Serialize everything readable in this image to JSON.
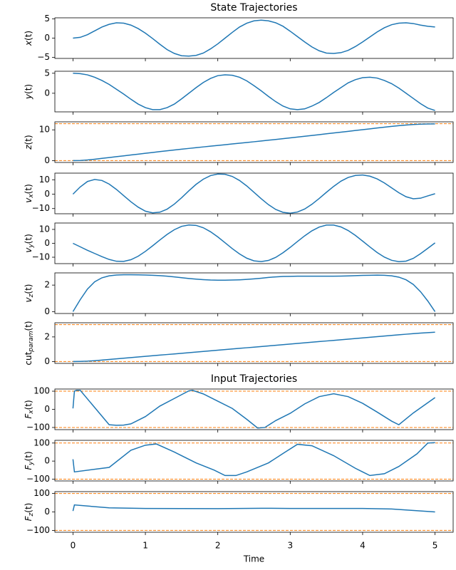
{
  "chart_data": [
    {
      "type": "line",
      "title": "State Trajectories",
      "ylabel": [
        "x",
        "(t)"
      ],
      "xtick_labels": false,
      "x": [
        0,
        0.1,
        0.2,
        0.3,
        0.4,
        0.5,
        0.6,
        0.7,
        0.8,
        0.9,
        1.0,
        1.1,
        1.2,
        1.3,
        1.4,
        1.5,
        1.6,
        1.7,
        1.8,
        1.9,
        2.0,
        2.1,
        2.2,
        2.3,
        2.4,
        2.5,
        2.6,
        2.7,
        2.8,
        2.9,
        3.0,
        3.1,
        3.2,
        3.3,
        3.4,
        3.5,
        3.6,
        3.7,
        3.8,
        3.9,
        4.0,
        4.1,
        4.2,
        4.3,
        4.4,
        4.5,
        4.6,
        4.7,
        4.8,
        4.9,
        5.0
      ],
      "series": [
        {
          "color": "#1f77b4",
          "values": [
            0,
            0.2,
            0.9,
            1.9,
            2.9,
            3.6,
            4.0,
            3.9,
            3.4,
            2.5,
            1.3,
            -0.1,
            -1.6,
            -3.0,
            -4.0,
            -4.6,
            -4.7,
            -4.5,
            -3.9,
            -2.8,
            -1.5,
            0,
            1.5,
            2.9,
            3.9,
            4.5,
            4.7,
            4.5,
            4.0,
            3.1,
            1.8,
            0.4,
            -1.0,
            -2.3,
            -3.3,
            -3.9,
            -4.0,
            -3.8,
            -3.2,
            -2.2,
            -1.0,
            0.3,
            1.6,
            2.7,
            3.5,
            3.9,
            4.0,
            3.8,
            3.4,
            3.1,
            2.9
          ]
        }
      ],
      "xlim": [
        -0.25,
        5.25
      ],
      "xticks": [
        0,
        1,
        2,
        3,
        4,
        5
      ],
      "ylim": [
        -5.3,
        5.3
      ],
      "yticks": [
        {
          "value": -5,
          "label": "−5"
        },
        0,
        5
      ]
    },
    {
      "type": "line",
      "ylabel": [
        "y",
        "(t)"
      ],
      "xtick_labels": false,
      "x": [
        0,
        0.1,
        0.2,
        0.3,
        0.4,
        0.5,
        0.6,
        0.7,
        0.8,
        0.9,
        1.0,
        1.1,
        1.2,
        1.3,
        1.4,
        1.5,
        1.6,
        1.7,
        1.8,
        1.9,
        2.0,
        2.1,
        2.2,
        2.3,
        2.4,
        2.5,
        2.6,
        2.7,
        2.8,
        2.9,
        3.0,
        3.1,
        3.2,
        3.3,
        3.4,
        3.5,
        3.6,
        3.7,
        3.8,
        3.9,
        4.0,
        4.1,
        4.2,
        4.3,
        4.4,
        4.5,
        4.6,
        4.7,
        4.8,
        4.9,
        5.0
      ],
      "series": [
        {
          "color": "#1f77b4",
          "values": [
            5.0,
            4.9,
            4.6,
            4.0,
            3.2,
            2.2,
            1.0,
            -0.2,
            -1.5,
            -2.7,
            -3.6,
            -4.1,
            -4.1,
            -3.6,
            -2.7,
            -1.4,
            0,
            1.4,
            2.7,
            3.7,
            4.4,
            4.6,
            4.5,
            4.0,
            3.1,
            1.9,
            0.6,
            -0.8,
            -2.1,
            -3.2,
            -3.9,
            -4.1,
            -3.9,
            -3.2,
            -2.3,
            -1.1,
            0.2,
            1.4,
            2.6,
            3.4,
            3.9,
            4.0,
            3.8,
            3.2,
            2.4,
            1.3,
            0,
            -1.3,
            -2.6,
            -3.7,
            -4.3
          ]
        }
      ],
      "xlim": [
        -0.25,
        5.25
      ],
      "xticks": [
        0,
        1,
        2,
        3,
        4,
        5
      ],
      "ylim": [
        -4.65,
        5.5
      ],
      "yticks": [
        0,
        5
      ]
    },
    {
      "type": "line",
      "ylabel": [
        "z",
        "(t)"
      ],
      "xtick_labels": false,
      "x": [
        0,
        0.1,
        0.2,
        0.3,
        0.4,
        0.5,
        0.6,
        0.7,
        0.8,
        0.9,
        1.0,
        1.1,
        1.2,
        1.3,
        1.4,
        1.5,
        1.6,
        1.7,
        1.8,
        1.9,
        2.0,
        2.1,
        2.2,
        2.3,
        2.4,
        2.5,
        2.6,
        2.7,
        2.8,
        2.9,
        3.0,
        3.1,
        3.2,
        3.3,
        3.4,
        3.5,
        3.6,
        3.7,
        3.8,
        3.9,
        4.0,
        4.1,
        4.2,
        4.3,
        4.4,
        4.5,
        4.6,
        4.7,
        4.8,
        4.9,
        5.0
      ],
      "series": [
        {
          "color": "#1f77b4",
          "values": [
            0,
            0.05,
            0.2,
            0.45,
            0.72,
            0.99,
            1.27,
            1.55,
            1.83,
            2.1,
            2.38,
            2.65,
            2.92,
            3.18,
            3.45,
            3.71,
            3.96,
            4.21,
            4.45,
            4.69,
            4.93,
            5.17,
            5.41,
            5.65,
            5.89,
            6.13,
            6.38,
            6.63,
            6.88,
            7.14,
            7.4,
            7.66,
            7.92,
            8.18,
            8.44,
            8.71,
            8.97,
            9.24,
            9.51,
            9.78,
            10.05,
            10.32,
            10.6,
            10.87,
            11.12,
            11.35,
            11.55,
            11.72,
            11.84,
            11.91,
            11.93
          ]
        }
      ],
      "hlines": {
        "values": [
          0,
          12
        ],
        "color": "#ff7f0e",
        "style": "dashed"
      },
      "xlim": [
        -0.25,
        5.25
      ],
      "xticks": [
        0,
        1,
        2,
        3,
        4,
        5
      ],
      "ylim": [
        -0.6,
        12.6
      ],
      "yticks": [
        0,
        10
      ]
    },
    {
      "type": "line",
      "ylabel": [
        "v",
        "x",
        "(t)"
      ],
      "xtick_labels": false,
      "x": [
        0,
        0.1,
        0.2,
        0.3,
        0.4,
        0.5,
        0.6,
        0.7,
        0.8,
        0.9,
        1.0,
        1.1,
        1.2,
        1.3,
        1.4,
        1.5,
        1.6,
        1.7,
        1.8,
        1.9,
        2.0,
        2.1,
        2.2,
        2.3,
        2.4,
        2.5,
        2.6,
        2.7,
        2.8,
        2.9,
        3.0,
        3.1,
        3.2,
        3.3,
        3.4,
        3.5,
        3.6,
        3.7,
        3.8,
        3.9,
        4.0,
        4.1,
        4.2,
        4.3,
        4.4,
        4.5,
        4.6,
        4.7,
        4.8,
        4.9,
        5.0
      ],
      "series": [
        {
          "color": "#1f77b4",
          "values": [
            0,
            5,
            8.8,
            10.2,
            9.5,
            7,
            3.3,
            -1,
            -5.3,
            -9,
            -11.8,
            -13,
            -12.5,
            -10.4,
            -6.9,
            -2.5,
            2.3,
            6.8,
            10.4,
            12.9,
            14,
            13.8,
            12.3,
            9.5,
            5.7,
            1.3,
            -3.2,
            -7.3,
            -10.6,
            -12.6,
            -13.2,
            -12.4,
            -10.3,
            -7,
            -3,
            1.3,
            5.4,
            9,
            11.6,
            13,
            13.3,
            12.5,
            10.6,
            7.8,
            4.4,
            1,
            -1.8,
            -3.2,
            -2.8,
            -1.2,
            0.3
          ]
        }
      ],
      "xlim": [
        -0.25,
        5.25
      ],
      "xticks": [
        0,
        1,
        2,
        3,
        4,
        5
      ],
      "ylim": [
        -13.6,
        14.6
      ],
      "yticks": [
        {
          "value": -10,
          "label": "−10"
        },
        0,
        10
      ]
    },
    {
      "type": "line",
      "ylabel": [
        "v",
        "y",
        "(t)"
      ],
      "xtick_labels": false,
      "x": [
        0,
        0.1,
        0.2,
        0.3,
        0.4,
        0.5,
        0.6,
        0.7,
        0.8,
        0.9,
        1.0,
        1.1,
        1.2,
        1.3,
        1.4,
        1.5,
        1.6,
        1.7,
        1.8,
        1.9,
        2.0,
        2.1,
        2.2,
        2.3,
        2.4,
        2.5,
        2.6,
        2.7,
        2.8,
        2.9,
        3.0,
        3.1,
        3.2,
        3.3,
        3.4,
        3.5,
        3.6,
        3.7,
        3.8,
        3.9,
        4.0,
        4.1,
        4.2,
        4.3,
        4.4,
        4.5,
        4.6,
        4.7,
        4.8,
        4.9,
        5.0
      ],
      "series": [
        {
          "color": "#1f77b4",
          "values": [
            0,
            -2.5,
            -5,
            -7.3,
            -9.6,
            -11.6,
            -12.9,
            -13,
            -11.8,
            -9.3,
            -5.8,
            -1.8,
            2.4,
            6.4,
            9.8,
            12.2,
            13.2,
            12.9,
            11.2,
            8.3,
            4.6,
            0.4,
            -3.8,
            -7.6,
            -10.7,
            -12.6,
            -13.1,
            -12.3,
            -10.1,
            -6.8,
            -2.9,
            1.3,
            5.4,
            9,
            11.7,
            13.1,
            13.1,
            11.8,
            9.2,
            5.7,
            1.6,
            -2.6,
            -6.6,
            -9.9,
            -12.2,
            -13.2,
            -12.8,
            -10.8,
            -7.4,
            -3.6,
            0.3
          ]
        }
      ],
      "xlim": [
        -0.25,
        5.25
      ],
      "xticks": [
        0,
        1,
        2,
        3,
        4,
        5
      ],
      "ylim": [
        -14.6,
        14.6
      ],
      "yticks": [
        {
          "value": -10,
          "label": "−10"
        },
        0,
        10
      ]
    },
    {
      "type": "line",
      "ylabel": [
        "v",
        "z",
        "(t)"
      ],
      "xtick_labels": false,
      "x": [
        0,
        0.1,
        0.2,
        0.3,
        0.4,
        0.5,
        0.6,
        0.7,
        0.8,
        0.9,
        1.0,
        1.1,
        1.2,
        1.3,
        1.4,
        1.5,
        1.6,
        1.7,
        1.8,
        1.9,
        2.0,
        2.1,
        2.2,
        2.3,
        2.4,
        2.5,
        2.6,
        2.7,
        2.8,
        2.9,
        3.0,
        3.1,
        3.2,
        3.3,
        3.4,
        3.5,
        3.6,
        3.7,
        3.8,
        3.9,
        4.0,
        4.1,
        4.2,
        4.3,
        4.4,
        4.5,
        4.6,
        4.7,
        4.8,
        4.9,
        5.0
      ],
      "series": [
        {
          "color": "#1f77b4",
          "values": [
            0,
            0.9,
            1.7,
            2.25,
            2.55,
            2.7,
            2.76,
            2.78,
            2.78,
            2.77,
            2.76,
            2.74,
            2.71,
            2.67,
            2.62,
            2.56,
            2.5,
            2.45,
            2.41,
            2.38,
            2.37,
            2.37,
            2.38,
            2.4,
            2.43,
            2.47,
            2.52,
            2.58,
            2.62,
            2.65,
            2.66,
            2.67,
            2.67,
            2.67,
            2.67,
            2.67,
            2.67,
            2.68,
            2.69,
            2.71,
            2.73,
            2.74,
            2.75,
            2.74,
            2.7,
            2.6,
            2.4,
            2.05,
            1.5,
            0.8,
            0
          ]
        }
      ],
      "xlim": [
        -0.25,
        5.25
      ],
      "xticks": [
        0,
        1,
        2,
        3,
        4,
        5
      ],
      "ylim": [
        -0.14,
        2.92
      ],
      "yticks": [
        0,
        2
      ]
    },
    {
      "type": "line",
      "ylabel": [
        "cut",
        "param",
        "(t)"
      ],
      "xtick_labels": false,
      "x": [
        0,
        0.1,
        0.2,
        0.3,
        0.4,
        0.5,
        0.6,
        0.7,
        0.8,
        0.9,
        1.0,
        1.1,
        1.2,
        1.3,
        1.4,
        1.5,
        1.6,
        1.7,
        1.8,
        1.9,
        2.0,
        2.1,
        2.2,
        2.3,
        2.4,
        2.5,
        2.6,
        2.7,
        2.8,
        2.9,
        3.0,
        3.1,
        3.2,
        3.3,
        3.4,
        3.5,
        3.6,
        3.7,
        3.8,
        3.9,
        4.0,
        4.1,
        4.2,
        4.3,
        4.4,
        4.5,
        4.6,
        4.7,
        4.8,
        4.9,
        5.0
      ],
      "series": [
        {
          "color": "#1f77b4",
          "values": [
            0,
            0.01,
            0.03,
            0.07,
            0.12,
            0.17,
            0.22,
            0.27,
            0.32,
            0.37,
            0.42,
            0.47,
            0.52,
            0.57,
            0.62,
            0.67,
            0.72,
            0.77,
            0.82,
            0.87,
            0.92,
            0.97,
            1.02,
            1.07,
            1.12,
            1.17,
            1.22,
            1.27,
            1.32,
            1.37,
            1.42,
            1.47,
            1.52,
            1.57,
            1.62,
            1.67,
            1.72,
            1.77,
            1.82,
            1.87,
            1.92,
            1.97,
            2.02,
            2.07,
            2.12,
            2.17,
            2.22,
            2.27,
            2.31,
            2.35,
            2.38
          ]
        }
      ],
      "hlines": {
        "values": [
          0,
          3
        ],
        "color": "#ff7f0e",
        "style": "dashed"
      },
      "xlim": [
        -0.25,
        5.25
      ],
      "xticks": [
        0,
        1,
        2,
        3,
        4,
        5
      ],
      "ylim": [
        -0.15,
        3.15
      ],
      "yticks": [
        0,
        2
      ]
    },
    {
      "type": "line",
      "title": "Input Trajectories",
      "ylabel": [
        "F",
        "x",
        "(t)"
      ],
      "xtick_labels": false,
      "x": [
        0,
        0.02,
        0.05,
        0.1,
        0.5,
        0.6,
        0.7,
        0.8,
        1.0,
        1.2,
        1.4,
        1.6,
        1.65,
        1.8,
        2.0,
        2.2,
        2.4,
        2.55,
        2.65,
        2.8,
        3.0,
        3.2,
        3.4,
        3.6,
        3.8,
        4.0,
        4.2,
        4.4,
        4.5,
        4.7,
        5.0
      ],
      "series": [
        {
          "color": "#1f77b4",
          "values": [
            5,
            100,
            105,
            105,
            -85,
            -88,
            -87,
            -80,
            -40,
            18,
            60,
            102,
            105,
            85,
            45,
            5,
            -55,
            -103,
            -100,
            -62,
            -22,
            30,
            70,
            86,
            70,
            33,
            -15,
            -65,
            -85,
            -20,
            65
          ]
        }
      ],
      "hlines": {
        "values": [
          -100,
          100
        ],
        "color": "#ff7f0e",
        "style": "dashed"
      },
      "xlim": [
        -0.25,
        5.25
      ],
      "xticks": [
        0,
        1,
        2,
        3,
        4,
        5
      ],
      "ylim": [
        -112,
        112
      ],
      "yticks": [
        {
          "value": -100,
          "label": "−100"
        },
        0,
        100
      ]
    },
    {
      "type": "line",
      "ylabel": [
        "F",
        "y",
        "(t)"
      ],
      "xtick_labels": false,
      "x": [
        0,
        0.02,
        0.5,
        0.8,
        1.0,
        1.15,
        1.4,
        1.7,
        1.95,
        2.1,
        2.25,
        2.4,
        2.7,
        2.95,
        3.1,
        3.3,
        3.6,
        3.9,
        4.1,
        4.3,
        4.5,
        4.75,
        4.9,
        5.0
      ],
      "series": [
        {
          "color": "#1f77b4",
          "values": [
            10,
            -60,
            -35,
            60,
            88,
            95,
            50,
            -10,
            -50,
            -80,
            -80,
            -60,
            -10,
            55,
            93,
            85,
            30,
            -40,
            -80,
            -70,
            -30,
            40,
            100,
            102
          ]
        }
      ],
      "hlines": {
        "values": [
          -100,
          100
        ],
        "color": "#ff7f0e",
        "style": "dashed"
      },
      "xlim": [
        -0.25,
        5.25
      ],
      "xticks": [
        0,
        1,
        2,
        3,
        4,
        5
      ],
      "ylim": [
        -110,
        115
      ],
      "yticks": [
        {
          "value": -100,
          "label": "−100"
        },
        0,
        100
      ]
    },
    {
      "type": "line",
      "ylabel": [
        "F",
        "z",
        "(t)"
      ],
      "xlabel": "Time",
      "xtick_labels": true,
      "x": [
        0,
        0.02,
        0.5,
        1.0,
        2.0,
        2.6,
        3.0,
        4.0,
        4.4,
        5.0
      ],
      "series": [
        {
          "color": "#1f77b4",
          "values": [
            5,
            38,
            22,
            19,
            18,
            20,
            19,
            19,
            16,
            0
          ]
        }
      ],
      "hlines": {
        "values": [
          -100,
          100
        ],
        "color": "#ff7f0e",
        "style": "dashed"
      },
      "xlim": [
        -0.25,
        5.25
      ],
      "xticks": [
        0,
        1,
        2,
        3,
        4,
        5
      ],
      "ylim": [
        -110,
        110
      ],
      "yticks": [
        {
          "value": -100,
          "label": "−100"
        },
        0,
        100
      ]
    }
  ]
}
